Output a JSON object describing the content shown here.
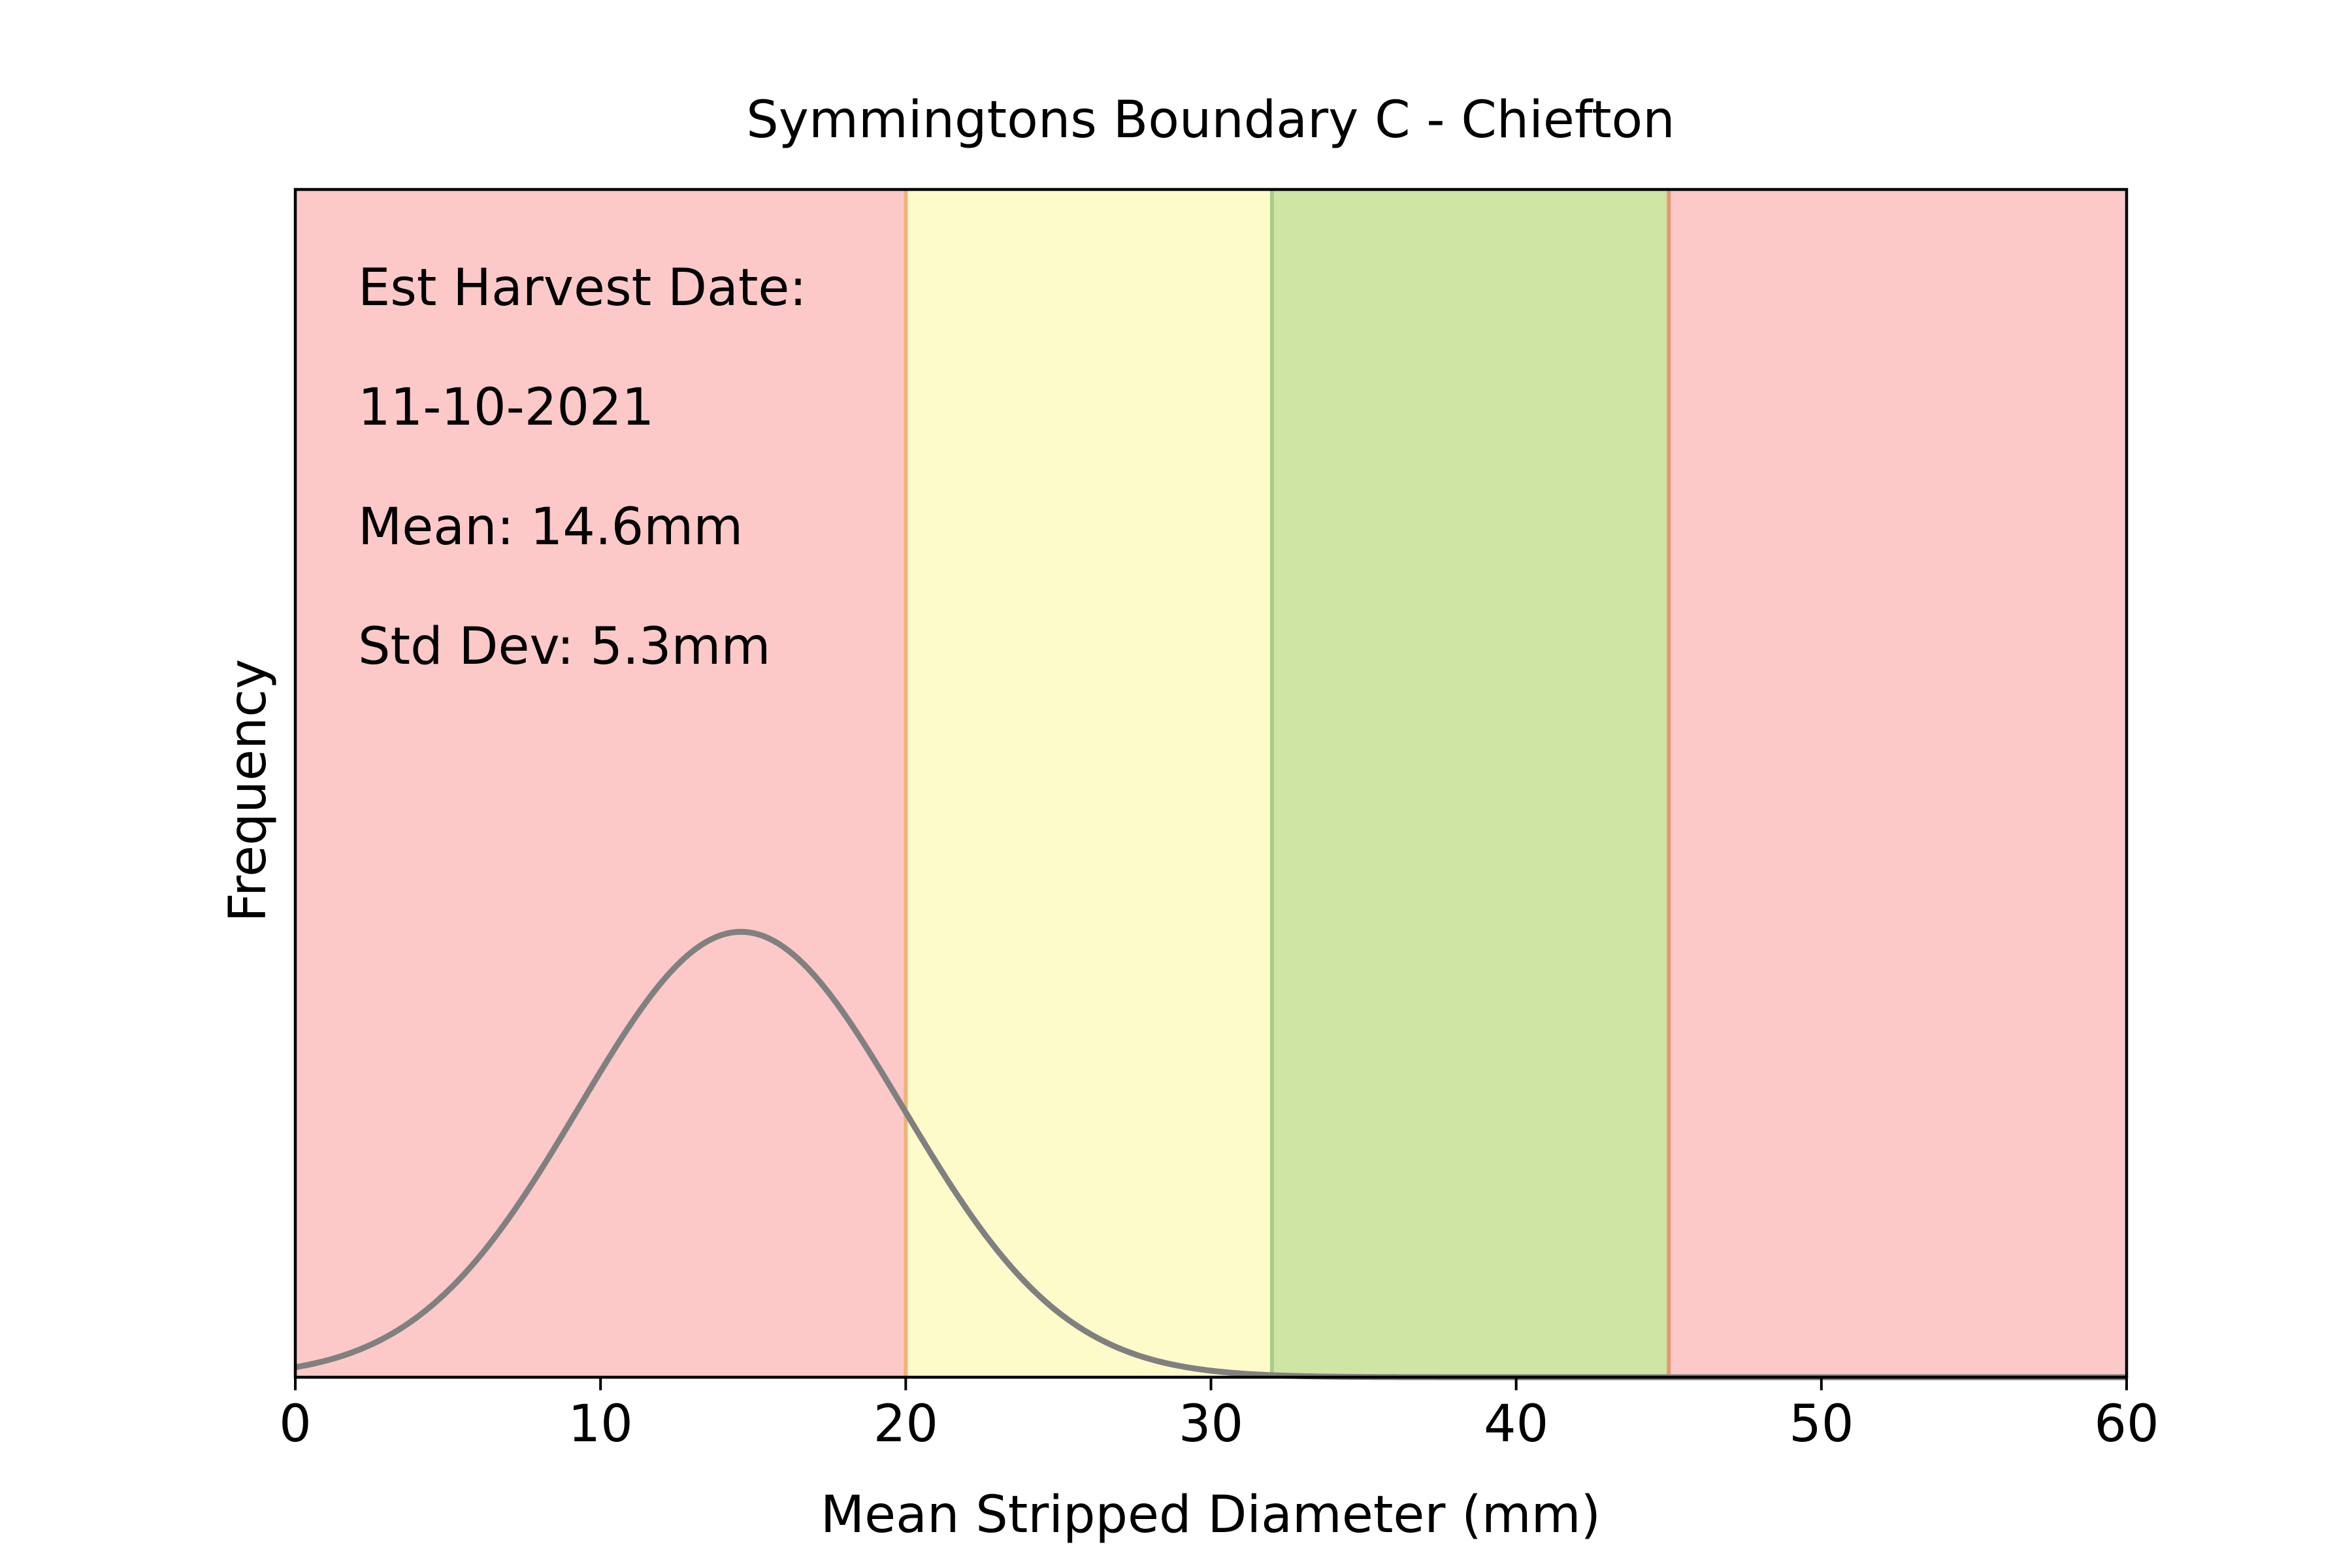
{
  "chart_data": {
    "type": "area",
    "title": "Symmingtons Boundary C - Chiefton",
    "xlabel": "Mean Stripped Diameter (mm)",
    "ylabel": "Frequency",
    "xlim": [
      0,
      60
    ],
    "x_ticks": [
      0,
      10,
      20,
      30,
      40,
      50,
      60
    ],
    "y_ticks": [],
    "grid": false,
    "annotations": [
      "Est Harvest Date:",
      "11-10-2021",
      "Mean: 14.6mm",
      "Std Dev: 5.3mm"
    ],
    "distribution": {
      "kind": "normal",
      "mean": 14.6,
      "std": 5.3,
      "color": "#808080"
    },
    "bands": [
      {
        "x": [
          0,
          20
        ],
        "color": "#fcc9c8"
      },
      {
        "x": [
          20,
          32
        ],
        "color": "#fefbca"
      },
      {
        "x": [
          32,
          45
        ],
        "color": "#cfe5a3"
      },
      {
        "x": [
          45,
          60
        ],
        "color": "#fcc9c8"
      }
    ]
  }
}
